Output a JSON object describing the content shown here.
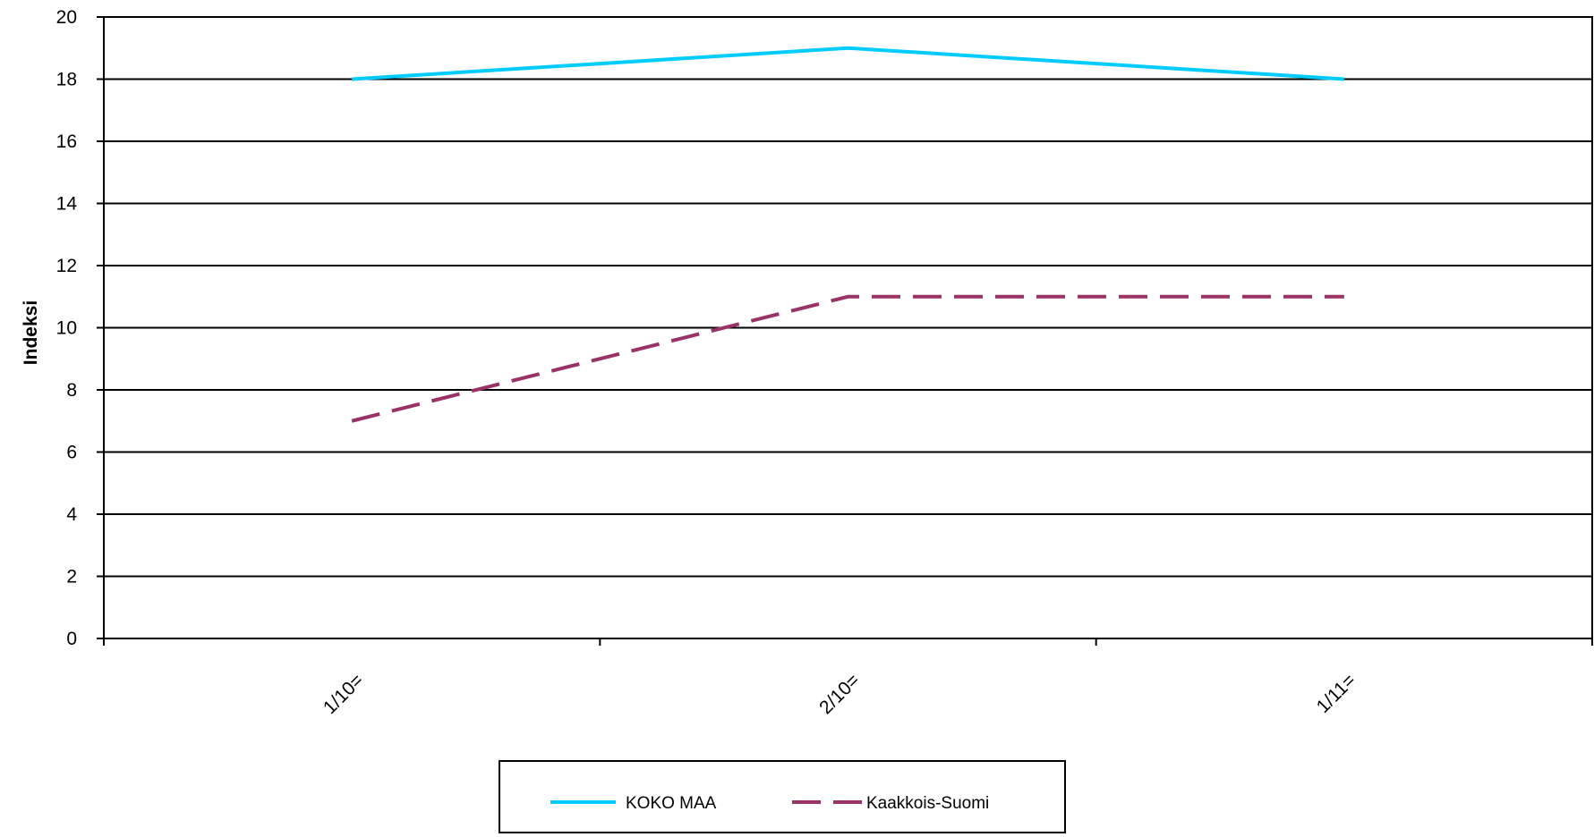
{
  "chart_data": {
    "type": "line",
    "title": "",
    "xlabel": "",
    "ylabel": "Indeksi",
    "categories": [
      "1/10=",
      "2/10=",
      "1/11="
    ],
    "ylim": [
      0,
      20
    ],
    "yticks": [
      0,
      2,
      4,
      6,
      8,
      10,
      12,
      14,
      16,
      18,
      20
    ],
    "grid": true,
    "legend_position": "bottom",
    "series": [
      {
        "name": "KOKO MAA",
        "values": [
          18,
          19,
          18
        ],
        "color": "#00ccff",
        "style": "solid"
      },
      {
        "name": "Kaakkois-Suomi",
        "values": [
          7,
          11,
          11
        ],
        "color": "#993366",
        "style": "dashed"
      }
    ]
  }
}
